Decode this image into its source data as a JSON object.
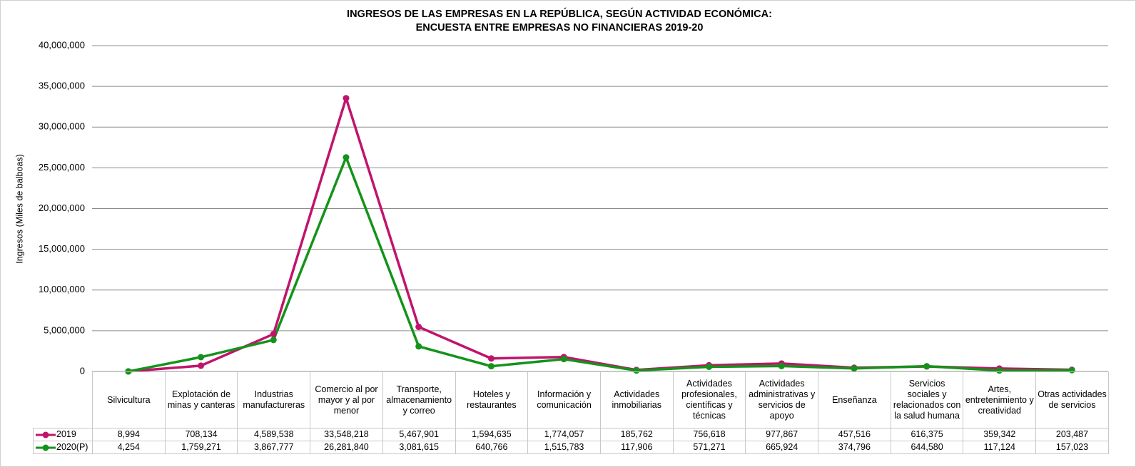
{
  "chart_data": {
    "type": "line",
    "title": [
      "INGRESOS DE LAS EMPRESAS EN LA REPÚBLICA, SEGÚN ACTIVIDAD ECONÓMICA:",
      "ENCUESTA ENTRE EMPRESAS NO FINANCIERAS 2019-20"
    ],
    "y_label": "Ingresos (Miles de balboas)",
    "categories": [
      "Silvicultura",
      "Explotación de minas y canteras",
      "Industrias manufactureras",
      "Comercio al por mayor y al por menor",
      "Transporte, almacenamiento y correo",
      "Hoteles y restaurantes",
      "Información y comunicación",
      "Actividades inmobiliarias",
      "Actividades profesionales, científicas y técnicas",
      "Actividades administrativas y servicios de apoyo",
      "Enseñanza",
      "Servicios sociales y relacionados con la salud humana",
      "Artes, entretenimiento y creatividad",
      "Otras actividades de servicios"
    ],
    "series": [
      {
        "name": "2019",
        "color": "#c0146c",
        "values": [
          8994,
          708134,
          4589538,
          33548218,
          5467901,
          1594635,
          1774057,
          185762,
          756618,
          977867,
          457516,
          616375,
          359342,
          203487
        ],
        "value_labels": [
          "8,994",
          "708,134",
          "4,589,538",
          "33,548,218",
          "5,467,901",
          "1,594,635",
          "1,774,057",
          "185,762",
          "756,618",
          "977,867",
          "457,516",
          "616,375",
          "359,342",
          "203,487"
        ]
      },
      {
        "name": "2020(P)",
        "color": "#14931a",
        "values": [
          4254,
          1759271,
          3867777,
          26281840,
          3081615,
          640766,
          1515783,
          117906,
          571271,
          665924,
          374796,
          644580,
          117124,
          157023
        ],
        "value_labels": [
          "4,254",
          "1,759,271",
          "3,867,777",
          "26,281,840",
          "3,081,615",
          "640,766",
          "1,515,783",
          "117,906",
          "571,271",
          "665,924",
          "374,796",
          "644,580",
          "117,124",
          "157,023"
        ]
      }
    ],
    "ylim": [
      0,
      40000000
    ],
    "yticks": [
      0,
      {
        "value": 5000000,
        "label": "5,000,000"
      },
      {
        "value": 10000000,
        "label": "10,000,000"
      },
      {
        "value": 15000000,
        "label": "15,000,000"
      },
      {
        "value": 20000000,
        "label": "20,000,000"
      },
      {
        "value": 25000000,
        "label": "25,000,000"
      },
      {
        "value": 30000000,
        "label": "30,000,000"
      },
      {
        "value": 35000000,
        "label": "35,000,000"
      },
      {
        "value": 40000000,
        "label": "40,000,000"
      }
    ],
    "grid": true
  }
}
